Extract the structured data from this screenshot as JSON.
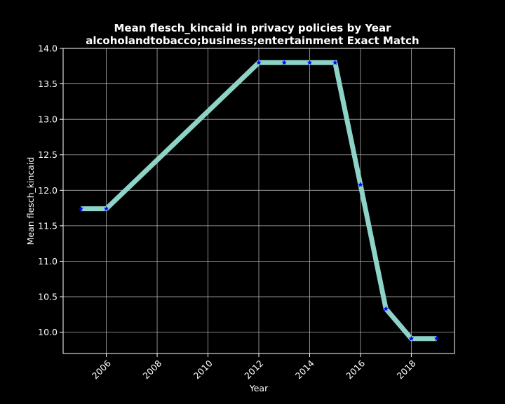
{
  "chart_data": {
    "type": "line",
    "title": "Mean flesch_kincaid in privacy policies by Year",
    "subtitle": "alcoholandtobacco;business;entertainment Exact Match",
    "xlabel": "Year",
    "ylabel": "Mean flesch_kincaid",
    "x": [
      2005,
      2006,
      2012,
      2013,
      2014,
      2015,
      2016,
      2017,
      2018,
      2019
    ],
    "values": [
      11.74,
      11.74,
      13.8,
      13.8,
      13.8,
      13.8,
      12.08,
      10.33,
      9.91,
      9.91
    ],
    "xlim": [
      2004.3,
      2019.7
    ],
    "ylim": [
      9.7,
      14.0
    ],
    "xticks": [
      "2006",
      "2008",
      "2010",
      "2012",
      "2014",
      "2016",
      "2018"
    ],
    "yticks": [
      "10.0",
      "10.5",
      "11.0",
      "11.5",
      "12.0",
      "12.5",
      "13.0",
      "13.5",
      "14.0"
    ],
    "grid": true,
    "line_color": "#8dd3c7",
    "marker_color": "#0000ff",
    "marker": "star",
    "background": "#000000"
  }
}
